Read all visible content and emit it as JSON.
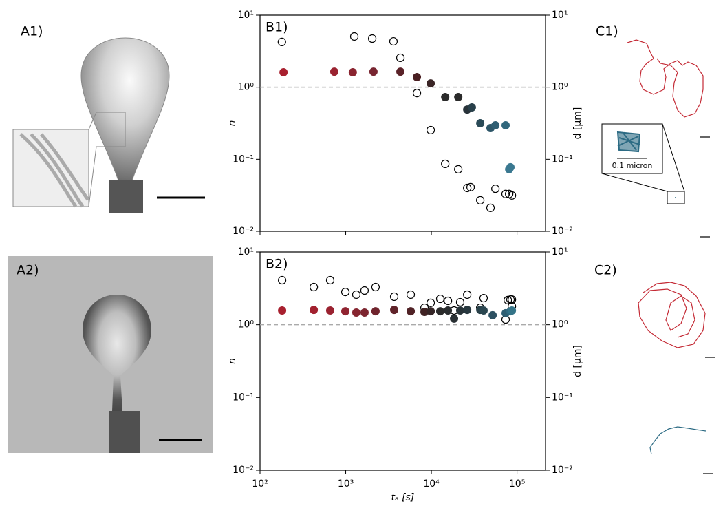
{
  "labels": {
    "a1": "A1)",
    "a2": "A2)",
    "c1": "C1)",
    "c2": "C2)",
    "inset": "0.1 micron"
  },
  "chart_data": [
    {
      "type": "scatter",
      "title": "B1)",
      "ylabel": "n",
      "y2label": "d [µm]",
      "log_x": true,
      "log_y": true,
      "xlim": [
        100,
        215000
      ],
      "ylim": [
        0.01,
        10
      ],
      "y2lim": [
        0.01,
        10
      ],
      "xticks": [
        100,
        1000,
        10000,
        100000
      ],
      "yticks": [
        {
          "value": 0.01,
          "label": "10⁻²"
        },
        {
          "value": 0.1,
          "label": "10⁻¹"
        },
        {
          "value": 1,
          "label": "10⁰"
        },
        {
          "value": 10,
          "label": "10¹"
        }
      ],
      "y2ticks": [
        {
          "value": 0.01,
          "label": "10⁻²"
        },
        {
          "value": 0.1,
          "label": "10⁻¹"
        },
        {
          "value": 1,
          "label": "10⁰"
        },
        {
          "value": 10,
          "label": "10¹"
        }
      ],
      "hline": 1,
      "series": [
        {
          "marker": "open",
          "color": "#000000",
          "x": [
            180,
            1260,
            2040,
            3610,
            4350,
            6780,
            9820,
            14500,
            20600,
            26200,
            28700,
            37200,
            49000,
            55900,
            73600,
            80900,
            87100
          ],
          "values": [
            4.25,
            5.06,
            4.73,
            4.33,
            2.56,
            0.83,
            0.254,
            0.0865,
            0.0726,
            0.04,
            0.041,
            0.027,
            0.0212,
            0.039,
            0.033,
            0.033,
            0.0315
          ]
        },
        {
          "marker": "filled",
          "colors": [
            "#a8202f",
            "#9a2230",
            "#8a2430",
            "#782530",
            "#5a2228",
            "#4a1f22",
            "#3a2526",
            "#2b2b2b",
            "#2b2b2b",
            "#28333a",
            "#28404a",
            "#2a4a57",
            "#2d5668",
            "#2e5e72",
            "#30677c",
            "#3a7890",
            "#3a7890"
          ],
          "x": [
            188,
            736,
            1210,
            2110,
            4350,
            6780,
            9820,
            14500,
            20600,
            26200,
            29700,
            37200,
            49000,
            55900,
            73600,
            80900,
            83800
          ],
          "values": [
            1.61,
            1.64,
            1.61,
            1.64,
            1.64,
            1.38,
            1.13,
            0.73,
            0.73,
            0.49,
            0.525,
            0.316,
            0.271,
            0.296,
            0.296,
            0.0726,
            0.0775
          ]
        }
      ]
    },
    {
      "type": "scatter",
      "title": "B2)",
      "ylabel": "n",
      "y2label": "d [µm]",
      "xlabel": "tₐ [s]",
      "log_x": true,
      "log_y": true,
      "xlim": [
        100,
        215000
      ],
      "ylim": [
        0.01,
        10
      ],
      "y2lim": [
        0.01,
        10
      ],
      "xticks": [
        {
          "value": 100,
          "label": "10²"
        },
        {
          "value": 1000,
          "label": "10³"
        },
        {
          "value": 10000,
          "label": "10⁴"
        },
        {
          "value": 100000,
          "label": "10⁵"
        }
      ],
      "yticks": [
        {
          "value": 0.01,
          "label": "10⁻²"
        },
        {
          "value": 0.1,
          "label": "10⁻¹"
        },
        {
          "value": 1,
          "label": "10⁰"
        },
        {
          "value": 10,
          "label": "10¹"
        }
      ],
      "y2ticks": [
        {
          "value": 0.01,
          "label": "10⁻²"
        },
        {
          "value": 0.1,
          "label": "10⁻¹"
        },
        {
          "value": 1,
          "label": "10⁰"
        },
        {
          "value": 10,
          "label": "10¹"
        }
      ],
      "hline": 1,
      "series": [
        {
          "marker": "open",
          "color": "#000000",
          "x": [
            181,
            424,
            659,
            991,
            1330,
            1660,
            2230,
            3680,
            5740,
            8310,
            9820,
            12700,
            15600,
            18400,
            21700,
            26200,
            37200,
            40700,
            73600,
            78000,
            83800,
            87100,
            87100
          ],
          "values": [
            4.09,
            3.29,
            4.09,
            2.82,
            2.59,
            2.95,
            3.29,
            2.43,
            2.59,
            1.71,
            2.0,
            2.27,
            2.13,
            1.57,
            2.04,
            2.59,
            1.71,
            2.32,
            1.18,
            2.18,
            2.22,
            1.79,
            2.22
          ]
        },
        {
          "marker": "filled",
          "colors": [
            "#a8202f",
            "#a2212f",
            "#9a2230",
            "#902330",
            "#86242f",
            "#7c252f",
            "#70242d",
            "#60232a",
            "#502226",
            "#402324",
            "#342526",
            "#2b2b2b",
            "#2a2d2f",
            "#282f33",
            "#283338",
            "#28383f",
            "#294048",
            "#2a4650",
            "#2c5061",
            "#2e5e72",
            "#306a80",
            "#347488"
          ],
          "x": [
            181,
            424,
            659,
            991,
            1330,
            1660,
            2230,
            3680,
            5740,
            8310,
            9820,
            12700,
            15600,
            18400,
            21700,
            26200,
            37200,
            40700,
            51900,
            73600,
            83800,
            87100
          ],
          "values": [
            1.57,
            1.6,
            1.57,
            1.53,
            1.47,
            1.47,
            1.53,
            1.6,
            1.53,
            1.5,
            1.53,
            1.53,
            1.57,
            1.21,
            1.57,
            1.6,
            1.6,
            1.57,
            1.35,
            1.44,
            1.53,
            1.57
          ]
        }
      ]
    }
  ]
}
